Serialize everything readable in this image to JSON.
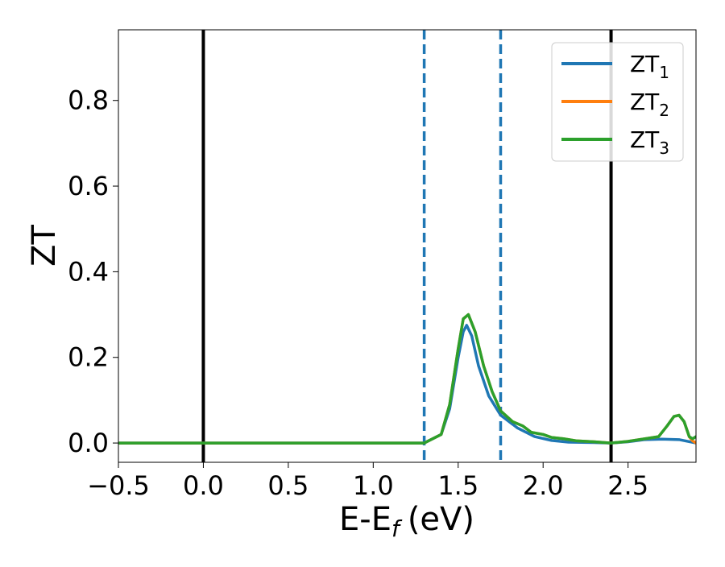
{
  "chart_data": {
    "type": "line",
    "xlabel": "E-E",
    "xlabel_sub": "f",
    "xlabel_unit": "(eV)",
    "ylabel": "ZT",
    "xlim": [
      -0.5,
      2.9
    ],
    "ylim": [
      -0.045,
      0.965
    ],
    "xticks": [
      -0.5,
      0.0,
      0.5,
      1.0,
      1.5,
      2.0,
      2.5
    ],
    "xtick_labels": [
      "−0.5",
      "0.0",
      "0.5",
      "1.0",
      "1.5",
      "2.0",
      "2.5"
    ],
    "yticks": [
      0.0,
      0.2,
      0.4,
      0.6,
      0.8
    ],
    "ytick_labels": [
      "0.0",
      "0.2",
      "0.4",
      "0.6",
      "0.8"
    ],
    "grid": false,
    "legend_position": "top-right",
    "vlines": [
      {
        "x": 0.0,
        "style": "solid",
        "color": "#000000"
      },
      {
        "x": 2.4,
        "style": "solid",
        "color": "#000000"
      },
      {
        "x": 1.3,
        "style": "dashed",
        "color": "#1f77b4"
      },
      {
        "x": 1.75,
        "style": "dashed",
        "color": "#1f77b4"
      }
    ],
    "series": [
      {
        "name": "ZT",
        "name_sub": "1",
        "color": "#1f77b4",
        "x": [
          -0.5,
          1.3,
          1.4,
          1.45,
          1.5,
          1.53,
          1.55,
          1.58,
          1.62,
          1.68,
          1.75,
          1.85,
          1.95,
          2.05,
          2.15,
          2.3,
          2.4,
          2.5,
          2.6,
          2.7,
          2.8,
          2.85,
          2.9
        ],
        "y": [
          0.0,
          0.0,
          0.02,
          0.08,
          0.2,
          0.26,
          0.275,
          0.25,
          0.18,
          0.11,
          0.065,
          0.035,
          0.015,
          0.006,
          0.002,
          0.001,
          0.0,
          0.003,
          0.008,
          0.009,
          0.008,
          0.004,
          0.0
        ]
      },
      {
        "name": "ZT",
        "name_sub": "2",
        "color": "#ff7f0e",
        "x": [
          -0.5,
          1.3,
          1.4,
          1.45,
          1.5,
          1.53,
          1.56,
          1.6,
          1.65,
          1.7,
          1.75,
          1.82,
          1.88,
          1.93,
          2.0,
          2.05,
          2.12,
          2.2,
          2.3,
          2.4,
          2.5,
          2.6,
          2.68,
          2.73,
          2.77,
          2.8,
          2.83,
          2.86,
          2.88,
          2.9
        ],
        "y": [
          0.0,
          0.0,
          0.02,
          0.09,
          0.22,
          0.29,
          0.3,
          0.26,
          0.18,
          0.12,
          0.075,
          0.05,
          0.04,
          0.025,
          0.02,
          0.013,
          0.01,
          0.005,
          0.003,
          0.0,
          0.004,
          0.01,
          0.015,
          0.04,
          0.062,
          0.065,
          0.05,
          0.015,
          0.005,
          0.0
        ]
      },
      {
        "name": "ZT",
        "name_sub": "3",
        "color": "#2ca02c",
        "x": [
          -0.5,
          1.3,
          1.4,
          1.45,
          1.5,
          1.53,
          1.56,
          1.6,
          1.65,
          1.7,
          1.75,
          1.82,
          1.88,
          1.93,
          2.0,
          2.05,
          2.12,
          2.2,
          2.3,
          2.4,
          2.5,
          2.6,
          2.68,
          2.73,
          2.77,
          2.8,
          2.83,
          2.86,
          2.88,
          2.9
        ],
        "y": [
          0.0,
          0.0,
          0.02,
          0.09,
          0.22,
          0.29,
          0.3,
          0.26,
          0.18,
          0.12,
          0.075,
          0.05,
          0.04,
          0.025,
          0.02,
          0.013,
          0.01,
          0.005,
          0.003,
          0.0,
          0.004,
          0.01,
          0.015,
          0.04,
          0.062,
          0.065,
          0.05,
          0.015,
          0.01,
          0.015
        ]
      }
    ]
  }
}
